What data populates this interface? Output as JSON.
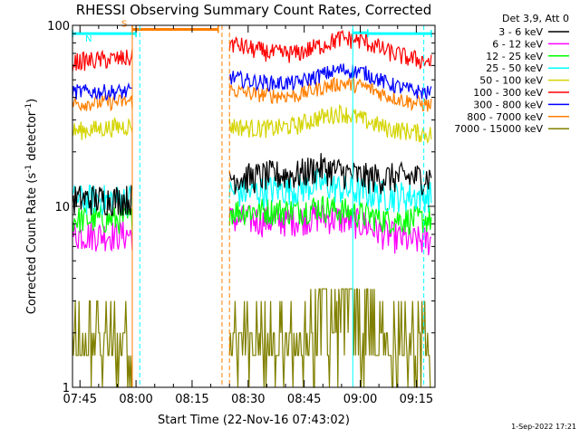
{
  "chart_data": {
    "type": "line",
    "title": "RHESSI Observing Summary Count Rates, Corrected",
    "xlabel": "Start Time (22-Nov-16 07:43:02)",
    "ylabel": "Corrected Count Rate (s⁻¹ detector⁻¹)",
    "ylabel_parts": {
      "base": "Corrected Count Rate (s",
      "exp1": "-1",
      "mid": " detector",
      "exp2": "-1",
      "end": ")"
    },
    "yscale": "log",
    "ylim": [
      1,
      100
    ],
    "xlim": [
      "07:43",
      "09:20"
    ],
    "y_ticks": [
      {
        "value": 1,
        "label": "1"
      },
      {
        "value": 10,
        "label": "10"
      },
      {
        "value": 100,
        "label": "100"
      }
    ],
    "x_ticks": [
      {
        "time": "07:45",
        "label": "07:45"
      },
      {
        "time": "08:00",
        "label": "08:00"
      },
      {
        "time": "08:15",
        "label": "08:15"
      },
      {
        "time": "08:30",
        "label": "08:30"
      },
      {
        "time": "08:45",
        "label": "08:45"
      },
      {
        "time": "09:00",
        "label": "09:00"
      },
      {
        "time": "09:15",
        "label": "09:15"
      }
    ],
    "legend": {
      "header": "Det 3,9, Att 0",
      "placement": "right",
      "entries": [
        {
          "label": "3 - 6 keV",
          "color": "#000000"
        },
        {
          "label": "6 - 12 keV",
          "color": "#ff00ff"
        },
        {
          "label": "12 - 25 keV",
          "color": "#00ff00"
        },
        {
          "label": "25 - 50 keV",
          "color": "#00ffff"
        },
        {
          "label": "50 - 100 keV",
          "color": "#d4d400"
        },
        {
          "label": "100 - 300 keV",
          "color": "#ff0000"
        },
        {
          "label": "300 - 800 keV",
          "color": "#0000ff"
        },
        {
          "label": "800 - 7000 keV",
          "color": "#ff7f00"
        },
        {
          "label": "7000 - 15000 keV",
          "color": "#808000"
        }
      ]
    },
    "segments": [
      {
        "start": "07:43",
        "end": "07:59"
      },
      {
        "start": "08:25",
        "end": "09:19"
      }
    ],
    "series": [
      {
        "name": "3 - 6 keV",
        "color": "#000000",
        "values": [
          {
            "start": "07:43",
            "end": "07:59",
            "y": [
              11,
              11
            ]
          },
          {
            "start": "08:25",
            "end": "09:19",
            "y": [
              14.5,
              14.5,
              15,
              15,
              16.5,
              15.5,
              14.5,
              14.5,
              14.5,
              14.5
            ]
          }
        ]
      },
      {
        "name": "6 - 12 keV",
        "color": "#ff00ff",
        "values": [
          {
            "start": "07:43",
            "end": "07:59",
            "y": [
              7,
              7
            ]
          },
          {
            "start": "08:25",
            "end": "09:19",
            "y": [
              8.5,
              8.5,
              8.3,
              8.5,
              8.8,
              8.5,
              8,
              7,
              6.5,
              6.5
            ]
          }
        ]
      },
      {
        "name": "12 - 25 keV",
        "color": "#00ff00",
        "values": [
          {
            "start": "07:43",
            "end": "07:59",
            "y": [
              8.5,
              8.5
            ]
          },
          {
            "start": "08:25",
            "end": "09:19",
            "y": [
              9.5,
              9.5,
              9.5,
              9.5,
              10,
              9.5,
              9,
              8.5,
              8.5,
              8.5
            ]
          }
        ]
      },
      {
        "name": "25 - 50 keV",
        "color": "#00ffff",
        "values": [
          {
            "start": "07:43",
            "end": "07:59",
            "y": [
              11,
              11
            ]
          },
          {
            "start": "08:25",
            "end": "09:19",
            "y": [
              12,
              12,
              12.5,
              12.5,
              13.5,
              12.5,
              12,
              11.5,
              11.5,
              11.5
            ]
          }
        ]
      },
      {
        "name": "50 - 100 keV",
        "color": "#d4d400",
        "values": [
          {
            "start": "07:43",
            "end": "07:59",
            "y": [
              26,
              28
            ]
          },
          {
            "start": "08:25",
            "end": "09:19",
            "y": [
              28,
              27,
              27,
              28,
              31,
              33,
              30,
              27,
              26,
              25
            ]
          }
        ]
      },
      {
        "name": "100 - 300 keV",
        "color": "#ff0000",
        "values": [
          {
            "start": "07:43",
            "end": "07:59",
            "y": [
              63,
              66
            ]
          },
          {
            "start": "08:25",
            "end": "09:19",
            "y": [
              80,
              74,
              70,
              70,
              77,
              85,
              82,
              72,
              66,
              63
            ]
          }
        ]
      },
      {
        "name": "300 - 800 keV",
        "color": "#0000ff",
        "values": [
          {
            "start": "07:43",
            "end": "07:59",
            "y": [
              43,
              43
            ]
          },
          {
            "start": "08:25",
            "end": "09:19",
            "y": [
              52,
              49,
              48,
              48,
              53,
              57,
              55,
              48,
              44,
              42
            ]
          }
        ]
      },
      {
        "name": "800 - 7000 keV",
        "color": "#ff7f00",
        "values": [
          {
            "start": "07:43",
            "end": "07:59",
            "y": [
              37,
              38
            ]
          },
          {
            "start": "08:25",
            "end": "09:19",
            "y": [
              44,
              42,
              41,
              41,
              45,
              48,
              46,
              41,
              38,
              36
            ]
          }
        ]
      },
      {
        "name": "7000 - 15000 keV",
        "color": "#808000",
        "values": [
          {
            "start": "07:43",
            "end": "07:59",
            "y": [
              1.5,
              1.5
            ]
          },
          {
            "start": "08:25",
            "end": "09:19",
            "y": [
              1.5,
              1.5,
              1.5,
              1.5,
              1.6,
              1.7,
              1.6,
              1.5,
              1.5,
              1.5
            ]
          }
        ]
      }
    ],
    "annotations": [
      {
        "type": "flag-bar",
        "label": "S",
        "color": "#ff7f00",
        "start": "07:59",
        "end": "08:22",
        "y": 95
      },
      {
        "type": "flag-bar",
        "label": "N",
        "color": "#00ffff",
        "start": "07:43",
        "end": "08:00",
        "y": 90
      },
      {
        "type": "flag-bar",
        "label": "",
        "color": "#00ffff",
        "start": "09:02",
        "end": "09:19",
        "y": 90
      },
      {
        "type": "flag-bar",
        "label": "",
        "color": "#00ffff",
        "start": "08:58",
        "end": "09:02",
        "y": 91
      },
      {
        "type": "vline",
        "time": "07:43",
        "color": "#00ffff",
        "dash": false
      },
      {
        "type": "vline",
        "time": "07:59",
        "color": "#ff7f00",
        "dash": false
      },
      {
        "type": "vline",
        "time": "08:01",
        "color": "#00ffff",
        "dash": true
      },
      {
        "type": "vline",
        "time": "08:23",
        "color": "#ff7f00",
        "dash": true
      },
      {
        "type": "vline",
        "time": "08:25",
        "color": "#ff7f00",
        "dash": true
      },
      {
        "type": "vline",
        "time": "08:58",
        "color": "#00ffff",
        "dash": false
      },
      {
        "type": "vline",
        "time": "09:17",
        "color": "#00ffff",
        "dash": true
      }
    ],
    "grid": false
  },
  "footer": {
    "timestamp": "1-Sep-2022 17:21"
  }
}
